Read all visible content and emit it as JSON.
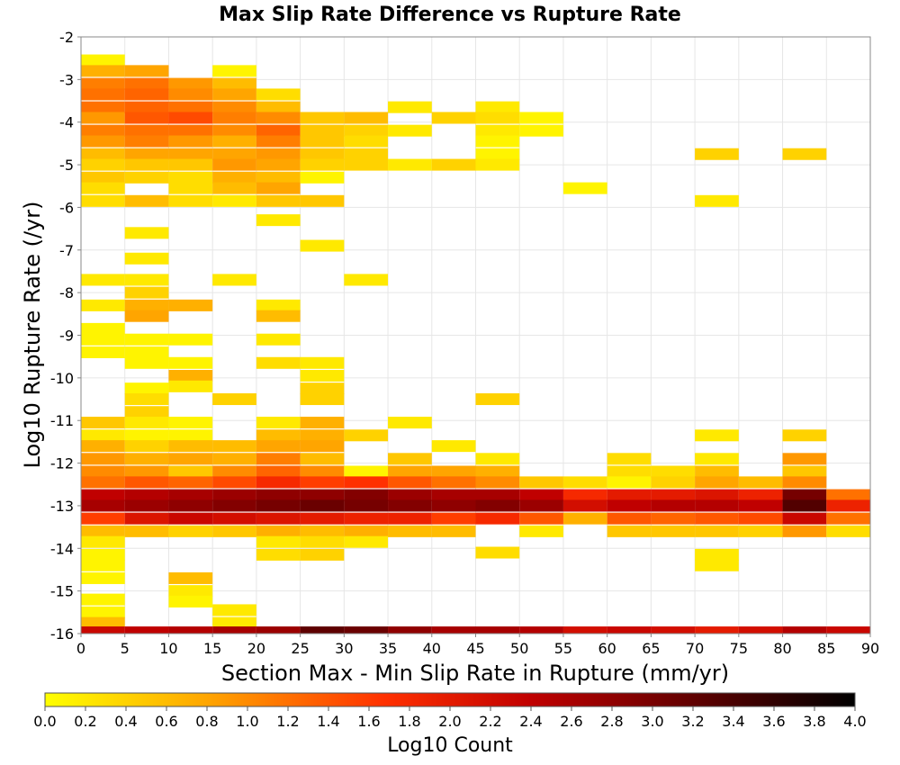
{
  "chart_data": {
    "type": "heatmap",
    "title": "Max Slip Rate Difference vs Rupture Rate",
    "xlabel": "Section Max - Min Slip Rate in Rupture (mm/yr)",
    "ylabel": "Log10 Rupture Rate (/yr)",
    "xlim": [
      0,
      90
    ],
    "ylim": [
      -16,
      -2
    ],
    "x_bin_width": 5,
    "y_bin_height": 0.275,
    "x_ticks": [
      0,
      5,
      10,
      15,
      20,
      25,
      30,
      35,
      40,
      45,
      50,
      55,
      60,
      65,
      70,
      75,
      80,
      85,
      90
    ],
    "y_ticks": [
      -16,
      -15,
      -14,
      -13,
      -12,
      -11,
      -10,
      -9,
      -8,
      -7,
      -6,
      -5,
      -4,
      -3,
      -2
    ],
    "grid": true,
    "colorbar": {
      "label": "Log10 Count",
      "range": [
        0.0,
        4.0
      ],
      "ticks": [
        0.0,
        0.2,
        0.4,
        0.6,
        0.8,
        1.0,
        1.2,
        1.4,
        1.6,
        1.8,
        2.0,
        2.2,
        2.4,
        2.6,
        2.8,
        3.0,
        3.2,
        3.4,
        3.6,
        3.8,
        4.0
      ],
      "tick_labels": [
        "0.0",
        "0.2",
        "0.4",
        "0.6",
        "0.8",
        "1.0",
        "1.2",
        "1.4",
        "1.6",
        "1.8",
        "2.0",
        "2.2",
        "2.4",
        "2.6",
        "2.8",
        "3.0",
        "3.2",
        "3.4",
        "3.6",
        "3.8",
        "4.0"
      ],
      "colormap": [
        "#ffff00",
        "#ffa500",
        "#ff3000",
        "#c00000",
        "#6a0000",
        "#000000"
      ]
    },
    "cells": [
      [
        0,
        -2.55,
        0.1
      ],
      [
        0,
        -2.8,
        0.7
      ],
      [
        0,
        -3.1,
        1.1
      ],
      [
        0,
        -3.35,
        1.2
      ],
      [
        0,
        -3.65,
        1.2
      ],
      [
        0,
        -3.9,
        0.9
      ],
      [
        0,
        -4.2,
        1.1
      ],
      [
        0,
        -4.45,
        0.9
      ],
      [
        0,
        -4.75,
        0.6
      ],
      [
        0,
        -5.0,
        0.4
      ],
      [
        0,
        -5.3,
        0.5
      ],
      [
        0,
        -5.55,
        0.3
      ],
      [
        0,
        -5.85,
        0.3
      ],
      [
        0,
        -7.7,
        0.2
      ],
      [
        0,
        -8.3,
        0.2
      ],
      [
        0,
        -8.85,
        0.1
      ],
      [
        0,
        -9.1,
        0.1
      ],
      [
        0,
        -9.4,
        0.1
      ],
      [
        0,
        -11.05,
        0.5
      ],
      [
        0,
        -11.35,
        0.2
      ],
      [
        0,
        -11.6,
        0.7
      ],
      [
        0,
        -11.9,
        0.9
      ],
      [
        0,
        -12.2,
        1.0
      ],
      [
        0,
        -12.45,
        1.2
      ],
      [
        0,
        -12.75,
        2.4
      ],
      [
        0,
        -13.0,
        2.6
      ],
      [
        0,
        -13.3,
        1.6
      ],
      [
        0,
        -13.6,
        0.6
      ],
      [
        0,
        -13.85,
        0.2
      ],
      [
        0,
        -14.15,
        0.1
      ],
      [
        0,
        -14.4,
        0.1
      ],
      [
        0,
        -14.7,
        0.1
      ],
      [
        0,
        -15.2,
        0.1
      ],
      [
        0,
        -15.5,
        0.1
      ],
      [
        0,
        -15.75,
        0.6
      ],
      [
        0,
        -15.97,
        2.3
      ],
      [
        5,
        -2.8,
        0.8
      ],
      [
        5,
        -3.1,
        1.2
      ],
      [
        5,
        -3.35,
        1.3
      ],
      [
        5,
        -3.65,
        1.3
      ],
      [
        5,
        -3.9,
        1.4
      ],
      [
        5,
        -4.2,
        1.2
      ],
      [
        5,
        -4.45,
        1.1
      ],
      [
        5,
        -4.75,
        0.8
      ],
      [
        5,
        -5.0,
        0.5
      ],
      [
        5,
        -5.3,
        0.4
      ],
      [
        5,
        -5.85,
        0.6
      ],
      [
        5,
        -6.6,
        0.2
      ],
      [
        5,
        -7.2,
        0.2
      ],
      [
        5,
        -7.7,
        0.2
      ],
      [
        5,
        -8.0,
        0.4
      ],
      [
        5,
        -8.3,
        0.7
      ],
      [
        5,
        -8.55,
        0.8
      ],
      [
        5,
        -9.1,
        0.1
      ],
      [
        5,
        -9.4,
        0.1
      ],
      [
        5,
        -9.65,
        0.1
      ],
      [
        5,
        -10.25,
        0.1
      ],
      [
        5,
        -10.5,
        0.3
      ],
      [
        5,
        -10.8,
        0.4
      ],
      [
        5,
        -11.05,
        0.2
      ],
      [
        5,
        -11.35,
        0.1
      ],
      [
        5,
        -11.6,
        0.4
      ],
      [
        5,
        -11.9,
        0.7
      ],
      [
        5,
        -12.2,
        0.9
      ],
      [
        5,
        -12.45,
        1.4
      ],
      [
        5,
        -12.75,
        2.5
      ],
      [
        5,
        -13.0,
        2.7
      ],
      [
        5,
        -13.3,
        2.1
      ],
      [
        5,
        -13.6,
        0.6
      ],
      [
        5,
        -15.97,
        2.4
      ],
      [
        10,
        -3.1,
        0.9
      ],
      [
        10,
        -3.35,
        1.0
      ],
      [
        10,
        -3.65,
        1.2
      ],
      [
        10,
        -3.9,
        1.5
      ],
      [
        10,
        -4.2,
        1.2
      ],
      [
        10,
        -4.45,
        0.9
      ],
      [
        10,
        -4.75,
        0.8
      ],
      [
        10,
        -5.0,
        0.5
      ],
      [
        10,
        -5.3,
        0.3
      ],
      [
        10,
        -5.55,
        0.3
      ],
      [
        10,
        -5.85,
        0.3
      ],
      [
        10,
        -8.3,
        0.7
      ],
      [
        10,
        -9.1,
        0.1
      ],
      [
        10,
        -9.65,
        0.1
      ],
      [
        10,
        -9.95,
        0.7
      ],
      [
        10,
        -10.2,
        0.2
      ],
      [
        10,
        -11.05,
        0.1
      ],
      [
        10,
        -11.35,
        0.1
      ],
      [
        10,
        -11.6,
        0.6
      ],
      [
        10,
        -11.9,
        0.8
      ],
      [
        10,
        -12.2,
        0.5
      ],
      [
        10,
        -12.45,
        1.3
      ],
      [
        10,
        -12.75,
        2.6
      ],
      [
        10,
        -13.0,
        2.8
      ],
      [
        10,
        -13.3,
        2.3
      ],
      [
        10,
        -13.6,
        0.4
      ],
      [
        10,
        -14.7,
        0.6
      ],
      [
        10,
        -15.0,
        0.2
      ],
      [
        10,
        -15.25,
        0.1
      ],
      [
        10,
        -15.97,
        2.5
      ],
      [
        15,
        -2.8,
        0.1
      ],
      [
        15,
        -3.1,
        0.6
      ],
      [
        15,
        -3.35,
        0.8
      ],
      [
        15,
        -3.65,
        1.0
      ],
      [
        15,
        -3.9,
        1.1
      ],
      [
        15,
        -4.2,
        1.0
      ],
      [
        15,
        -4.45,
        0.7
      ],
      [
        15,
        -4.75,
        0.8
      ],
      [
        15,
        -5.0,
        0.9
      ],
      [
        15,
        -5.3,
        0.7
      ],
      [
        15,
        -5.55,
        0.6
      ],
      [
        15,
        -5.85,
        0.2
      ],
      [
        15,
        -7.7,
        0.2
      ],
      [
        15,
        -10.5,
        0.4
      ],
      [
        15,
        -11.6,
        0.6
      ],
      [
        15,
        -11.9,
        0.7
      ],
      [
        15,
        -12.2,
        1.0
      ],
      [
        15,
        -12.45,
        1.5
      ],
      [
        15,
        -12.75,
        2.7
      ],
      [
        15,
        -13.0,
        2.9
      ],
      [
        15,
        -13.3,
        2.2
      ],
      [
        15,
        -13.6,
        0.5
      ],
      [
        15,
        -15.45,
        0.2
      ],
      [
        15,
        -15.75,
        0.2
      ],
      [
        15,
        -15.97,
        2.6
      ],
      [
        20,
        -3.35,
        0.3
      ],
      [
        20,
        -3.65,
        0.6
      ],
      [
        20,
        -3.9,
        1.0
      ],
      [
        20,
        -4.2,
        1.3
      ],
      [
        20,
        -4.45,
        1.1
      ],
      [
        20,
        -4.75,
        0.9
      ],
      [
        20,
        -5.0,
        0.8
      ],
      [
        20,
        -5.3,
        0.6
      ],
      [
        20,
        -5.55,
        0.8
      ],
      [
        20,
        -5.85,
        0.5
      ],
      [
        20,
        -6.3,
        0.2
      ],
      [
        20,
        -8.3,
        0.2
      ],
      [
        20,
        -8.55,
        0.6
      ],
      [
        20,
        -9.1,
        0.2
      ],
      [
        20,
        -9.65,
        0.3
      ],
      [
        20,
        -11.05,
        0.2
      ],
      [
        20,
        -11.35,
        0.6
      ],
      [
        20,
        -11.6,
        0.8
      ],
      [
        20,
        -11.9,
        1.1
      ],
      [
        20,
        -12.2,
        1.3
      ],
      [
        20,
        -12.45,
        1.8
      ],
      [
        20,
        -12.75,
        2.8
      ],
      [
        20,
        -13.0,
        3.0
      ],
      [
        20,
        -13.3,
        2.1
      ],
      [
        20,
        -13.6,
        0.7
      ],
      [
        20,
        -13.85,
        0.2
      ],
      [
        20,
        -14.15,
        0.3
      ],
      [
        20,
        -15.97,
        2.7
      ],
      [
        25,
        -3.9,
        0.5
      ],
      [
        25,
        -4.2,
        0.5
      ],
      [
        25,
        -4.45,
        0.5
      ],
      [
        25,
        -4.75,
        0.5
      ],
      [
        25,
        -5.0,
        0.4
      ],
      [
        25,
        -5.3,
        0.1
      ],
      [
        25,
        -5.85,
        0.5
      ],
      [
        25,
        -6.9,
        0.2
      ],
      [
        25,
        -9.65,
        0.2
      ],
      [
        25,
        -9.95,
        0.2
      ],
      [
        25,
        -10.25,
        0.4
      ],
      [
        25,
        -10.5,
        0.4
      ],
      [
        25,
        -11.05,
        0.7
      ],
      [
        25,
        -11.35,
        0.7
      ],
      [
        25,
        -11.6,
        0.8
      ],
      [
        25,
        -11.9,
        0.6
      ],
      [
        25,
        -12.2,
        1.0
      ],
      [
        25,
        -12.45,
        1.6
      ],
      [
        25,
        -12.75,
        2.8
      ],
      [
        25,
        -13.0,
        3.1
      ],
      [
        25,
        -13.3,
        2.0
      ],
      [
        25,
        -13.6,
        0.6
      ],
      [
        25,
        -13.85,
        0.3
      ],
      [
        25,
        -14.15,
        0.4
      ],
      [
        25,
        -15.97,
        3.2
      ],
      [
        30,
        -3.9,
        0.6
      ],
      [
        30,
        -4.2,
        0.4
      ],
      [
        30,
        -4.45,
        0.3
      ],
      [
        30,
        -4.75,
        0.4
      ],
      [
        30,
        -5.0,
        0.4
      ],
      [
        30,
        -7.7,
        0.2
      ],
      [
        30,
        -11.35,
        0.4
      ],
      [
        30,
        -12.2,
        0.1
      ],
      [
        30,
        -12.45,
        1.7
      ],
      [
        30,
        -12.75,
        2.9
      ],
      [
        30,
        -13.0,
        3.0
      ],
      [
        30,
        -13.3,
        1.9
      ],
      [
        30,
        -13.6,
        0.7
      ],
      [
        30,
        -13.85,
        0.2
      ],
      [
        30,
        -15.97,
        3.1
      ],
      [
        35,
        -3.65,
        0.2
      ],
      [
        35,
        -4.2,
        0.2
      ],
      [
        35,
        -5.0,
        0.2
      ],
      [
        35,
        -11.05,
        0.2
      ],
      [
        35,
        -11.9,
        0.5
      ],
      [
        35,
        -12.2,
        0.8
      ],
      [
        35,
        -12.45,
        1.4
      ],
      [
        35,
        -12.75,
        2.7
      ],
      [
        35,
        -13.0,
        2.9
      ],
      [
        35,
        -13.3,
        1.9
      ],
      [
        35,
        -13.6,
        0.6
      ],
      [
        35,
        -15.97,
        2.8
      ],
      [
        40,
        -3.9,
        0.4
      ],
      [
        40,
        -5.0,
        0.4
      ],
      [
        40,
        -11.6,
        0.2
      ],
      [
        40,
        -12.2,
        0.8
      ],
      [
        40,
        -12.45,
        1.2
      ],
      [
        40,
        -12.75,
        2.6
      ],
      [
        40,
        -13.0,
        2.8
      ],
      [
        40,
        -13.3,
        1.6
      ],
      [
        40,
        -13.6,
        0.6
      ],
      [
        40,
        -15.97,
        2.6
      ],
      [
        45,
        -3.65,
        0.2
      ],
      [
        45,
        -3.9,
        0.3
      ],
      [
        45,
        -4.2,
        0.2
      ],
      [
        45,
        -4.45,
        0.1
      ],
      [
        45,
        -4.75,
        0.1
      ],
      [
        45,
        -5.0,
        0.2
      ],
      [
        45,
        -10.5,
        0.4
      ],
      [
        45,
        -11.9,
        0.2
      ],
      [
        45,
        -12.2,
        0.7
      ],
      [
        45,
        -12.45,
        1.0
      ],
      [
        45,
        -12.75,
        2.6
      ],
      [
        45,
        -13.0,
        2.9
      ],
      [
        45,
        -13.3,
        1.8
      ],
      [
        45,
        -14.1,
        0.3
      ],
      [
        45,
        -15.97,
        2.6
      ],
      [
        50,
        -3.9,
        0.1
      ],
      [
        50,
        -4.2,
        0.1
      ],
      [
        50,
        -12.45,
        0.5
      ],
      [
        50,
        -12.75,
        2.4
      ],
      [
        50,
        -13.0,
        2.7
      ],
      [
        50,
        -13.3,
        1.4
      ],
      [
        50,
        -13.6,
        0.2
      ],
      [
        50,
        -15.97,
        2.5
      ],
      [
        55,
        -5.55,
        0.1
      ],
      [
        55,
        -12.45,
        0.3
      ],
      [
        55,
        -12.75,
        1.8
      ],
      [
        55,
        -13.0,
        2.2
      ],
      [
        55,
        -13.3,
        0.7
      ],
      [
        55,
        -15.97,
        2.2
      ],
      [
        60,
        -11.9,
        0.3
      ],
      [
        60,
        -12.2,
        0.3
      ],
      [
        60,
        -12.45,
        0.1
      ],
      [
        60,
        -12.75,
        2.0
      ],
      [
        60,
        -13.0,
        2.4
      ],
      [
        60,
        -13.3,
        1.4
      ],
      [
        60,
        -13.6,
        0.5
      ],
      [
        60,
        -15.97,
        2.3
      ],
      [
        65,
        -12.2,
        0.3
      ],
      [
        65,
        -12.45,
        0.4
      ],
      [
        65,
        -12.75,
        2.0
      ],
      [
        65,
        -13.0,
        2.5
      ],
      [
        65,
        -13.3,
        1.3
      ],
      [
        65,
        -13.6,
        0.5
      ],
      [
        65,
        -15.97,
        2.2
      ],
      [
        70,
        -4.75,
        0.4
      ],
      [
        70,
        -5.85,
        0.2
      ],
      [
        70,
        -11.35,
        0.2
      ],
      [
        70,
        -11.9,
        0.2
      ],
      [
        70,
        -12.2,
        0.6
      ],
      [
        70,
        -12.45,
        0.8
      ],
      [
        70,
        -12.75,
        2.1
      ],
      [
        70,
        -13.0,
        2.5
      ],
      [
        70,
        -13.3,
        1.4
      ],
      [
        70,
        -13.6,
        0.5
      ],
      [
        70,
        -14.15,
        0.2
      ],
      [
        70,
        -14.4,
        0.2
      ],
      [
        70,
        -15.97,
        2.0
      ],
      [
        75,
        -12.45,
        0.6
      ],
      [
        75,
        -12.75,
        1.9
      ],
      [
        75,
        -13.0,
        2.4
      ],
      [
        75,
        -13.3,
        1.5
      ],
      [
        75,
        -13.6,
        0.4
      ],
      [
        75,
        -15.97,
        2.2
      ],
      [
        80,
        -4.75,
        0.4
      ],
      [
        80,
        -11.35,
        0.4
      ],
      [
        80,
        -11.9,
        0.9
      ],
      [
        80,
        -12.2,
        0.5
      ],
      [
        80,
        -12.45,
        1.0
      ],
      [
        80,
        -12.75,
        3.0
      ],
      [
        80,
        -13.0,
        3.3
      ],
      [
        80,
        -13.3,
        2.3
      ],
      [
        80,
        -13.6,
        0.9
      ],
      [
        80,
        -15.97,
        2.5
      ],
      [
        85,
        -12.75,
        1.2
      ],
      [
        85,
        -13.0,
        1.9
      ],
      [
        85,
        -13.3,
        1.2
      ],
      [
        85,
        -13.6,
        0.3
      ],
      [
        85,
        -15.97,
        2.3
      ]
    ]
  }
}
